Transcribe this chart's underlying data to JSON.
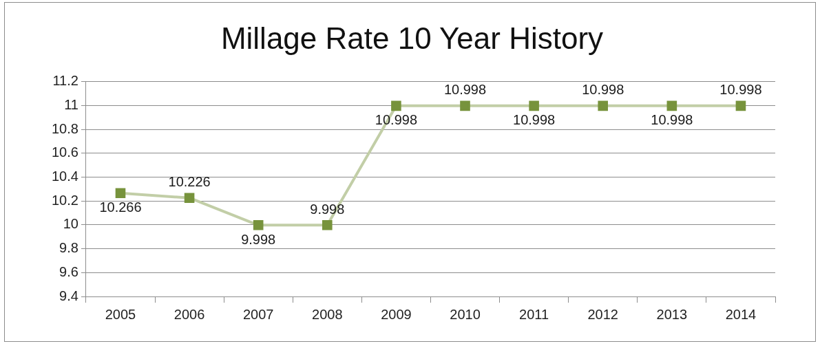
{
  "chart_data": {
    "type": "line",
    "title": "Millage Rate 10 Year History",
    "categories": [
      "2005",
      "2006",
      "2007",
      "2008",
      "2009",
      "2010",
      "2011",
      "2012",
      "2013",
      "2014"
    ],
    "series": [
      {
        "color": "#77933c",
        "values": [
          10.266,
          10.226,
          9.998,
          9.998,
          10.998,
          10.998,
          10.998,
          10.998,
          10.998,
          10.998
        ]
      }
    ],
    "ylim": [
      9.4,
      11.2
    ],
    "yticks": [
      9.4,
      9.6,
      9.8,
      10,
      10.2,
      10.4,
      10.6,
      10.8,
      11,
      11.2
    ],
    "grid": "y",
    "legend": false,
    "marker": "square",
    "line_style": "solid",
    "data_labels": true
  }
}
